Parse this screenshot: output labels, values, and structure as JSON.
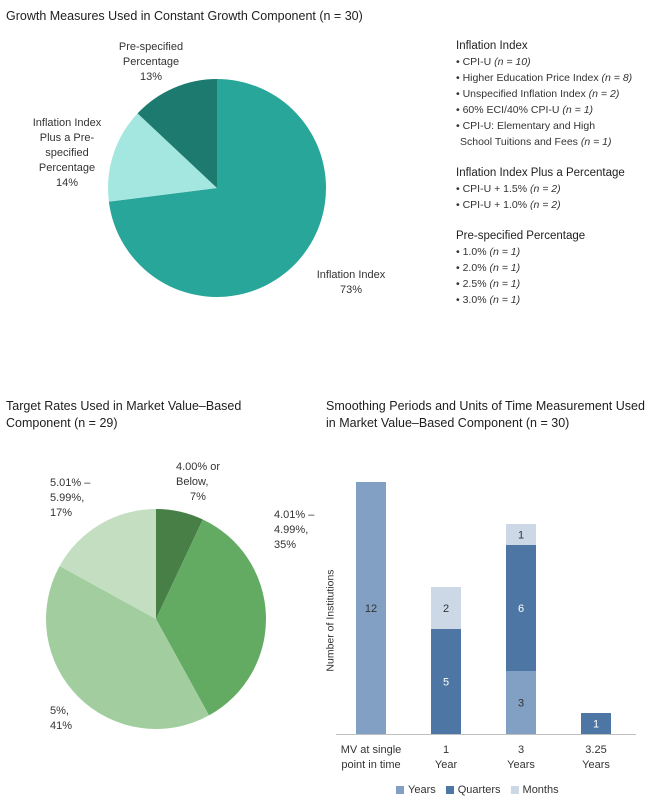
{
  "colors": {
    "infl": "#27a699",
    "infl_plus": "#a4e6e0",
    "pre": "#1d7a6f",
    "g_dark": "#477f46",
    "g_mid": "#63ab62",
    "g_light": "#a2ce9f",
    "g_pale": "#c4dec2",
    "years": "#829fc4",
    "quarters": "#4e76a5",
    "months": "#ccd8e6"
  },
  "chart_data": [
    {
      "type": "pie",
      "title": "Growth Measures Used in Constant Growth Component (n = 30)",
      "slices": [
        {
          "name": "Inflation Index",
          "pct": "73%",
          "value": 73
        },
        {
          "name": "Inflation Index Plus a Pre-specified Percentage",
          "pct": "14%",
          "value": 14
        },
        {
          "name": "Pre-specified Percentage",
          "pct": "13%",
          "value": 13
        }
      ],
      "legend": {
        "groups": [
          {
            "heading": "Inflation Index",
            "items": [
              {
                "text": "• CPI-U ",
                "n": "(n = 10)"
              },
              {
                "text": "• Higher Education Price Index ",
                "n": "(n = 8)"
              },
              {
                "text": "• Unspecified Inflation Index ",
                "n": "(n = 2)"
              },
              {
                "text": "• 60% ECI/40% CPI-U ",
                "n": "(n = 1)"
              },
              {
                "text": "• CPI-U: Elementary and High School Tuitions and Fees ",
                "n": "(n = 1)"
              }
            ]
          },
          {
            "heading": "Inflation Index Plus a Percentage",
            "items": [
              {
                "text": "• CPI-U + 1.5% ",
                "n": "(n = 2)"
              },
              {
                "text": "• CPI-U + 1.0% ",
                "n": "(n = 2)"
              }
            ]
          },
          {
            "heading": "Pre-specified Percentage",
            "items": [
              {
                "text": "• 1.0% ",
                "n": "(n = 1)"
              },
              {
                "text": "• 2.0% ",
                "n": "(n = 1)"
              },
              {
                "text": "• 2.5% ",
                "n": "(n = 1)"
              },
              {
                "text": "• 3.0% ",
                "n": "(n = 1)"
              }
            ]
          }
        ]
      }
    },
    {
      "type": "pie",
      "title": "Target Rates Used in Market Value–Based Component (n = 29)",
      "slices": [
        {
          "name": "4.00% or Below",
          "pct": "7%",
          "value": 7
        },
        {
          "name": "4.01% – 4.99%",
          "pct": "35%",
          "value": 35
        },
        {
          "name": "5%",
          "pct": "41%",
          "value": 41
        },
        {
          "name": "5.01% – 5.99%",
          "pct": "17%",
          "value": 17
        }
      ]
    },
    {
      "type": "bar",
      "stacked": true,
      "title": "Smoothing Periods and Units of Time Measurement Used in Market Value–Based Component (n = 30)",
      "ylabel": "Number of Institutions",
      "ylim": [
        0,
        12
      ],
      "categories": [
        "MV at single point in time",
        "1 Year",
        "3 Years",
        "3.25 Years"
      ],
      "series": [
        {
          "name": "Years",
          "values": [
            12,
            0,
            3,
            0
          ]
        },
        {
          "name": "Quarters",
          "values": [
            0,
            5,
            6,
            1
          ]
        },
        {
          "name": "Months",
          "values": [
            0,
            2,
            1,
            0
          ]
        }
      ],
      "legend_position": "bottom"
    }
  ],
  "labels": {
    "pie1": {
      "infl_name": "Inflation Index",
      "infl_pct": "73%",
      "plus_l1": "Inflation Index",
      "plus_l2": "Plus a Pre-",
      "plus_l3": "specified",
      "plus_l4": "Percentage",
      "plus_pct": "14%",
      "pre_l1": "Pre-specified",
      "pre_l2": "Percentage",
      "pre_pct": "13%"
    },
    "pie2": {
      "a_l1": "4.00% or",
      "a_l2": "Below,",
      "a_pct": "7%",
      "b_l1": "4.01% –",
      "b_l2": "4.99%,",
      "b_pct": "35%",
      "c_l1": "5%,",
      "c_pct": "41%",
      "d_l1": "5.01% –",
      "d_l2": "5.99%,",
      "d_pct": "17%"
    },
    "bar": {
      "cat_l1": [
        "MV at single",
        "1",
        "3",
        "3.25"
      ],
      "cat_l2": [
        "point in time",
        "Year",
        "Years",
        "Years"
      ]
    }
  }
}
